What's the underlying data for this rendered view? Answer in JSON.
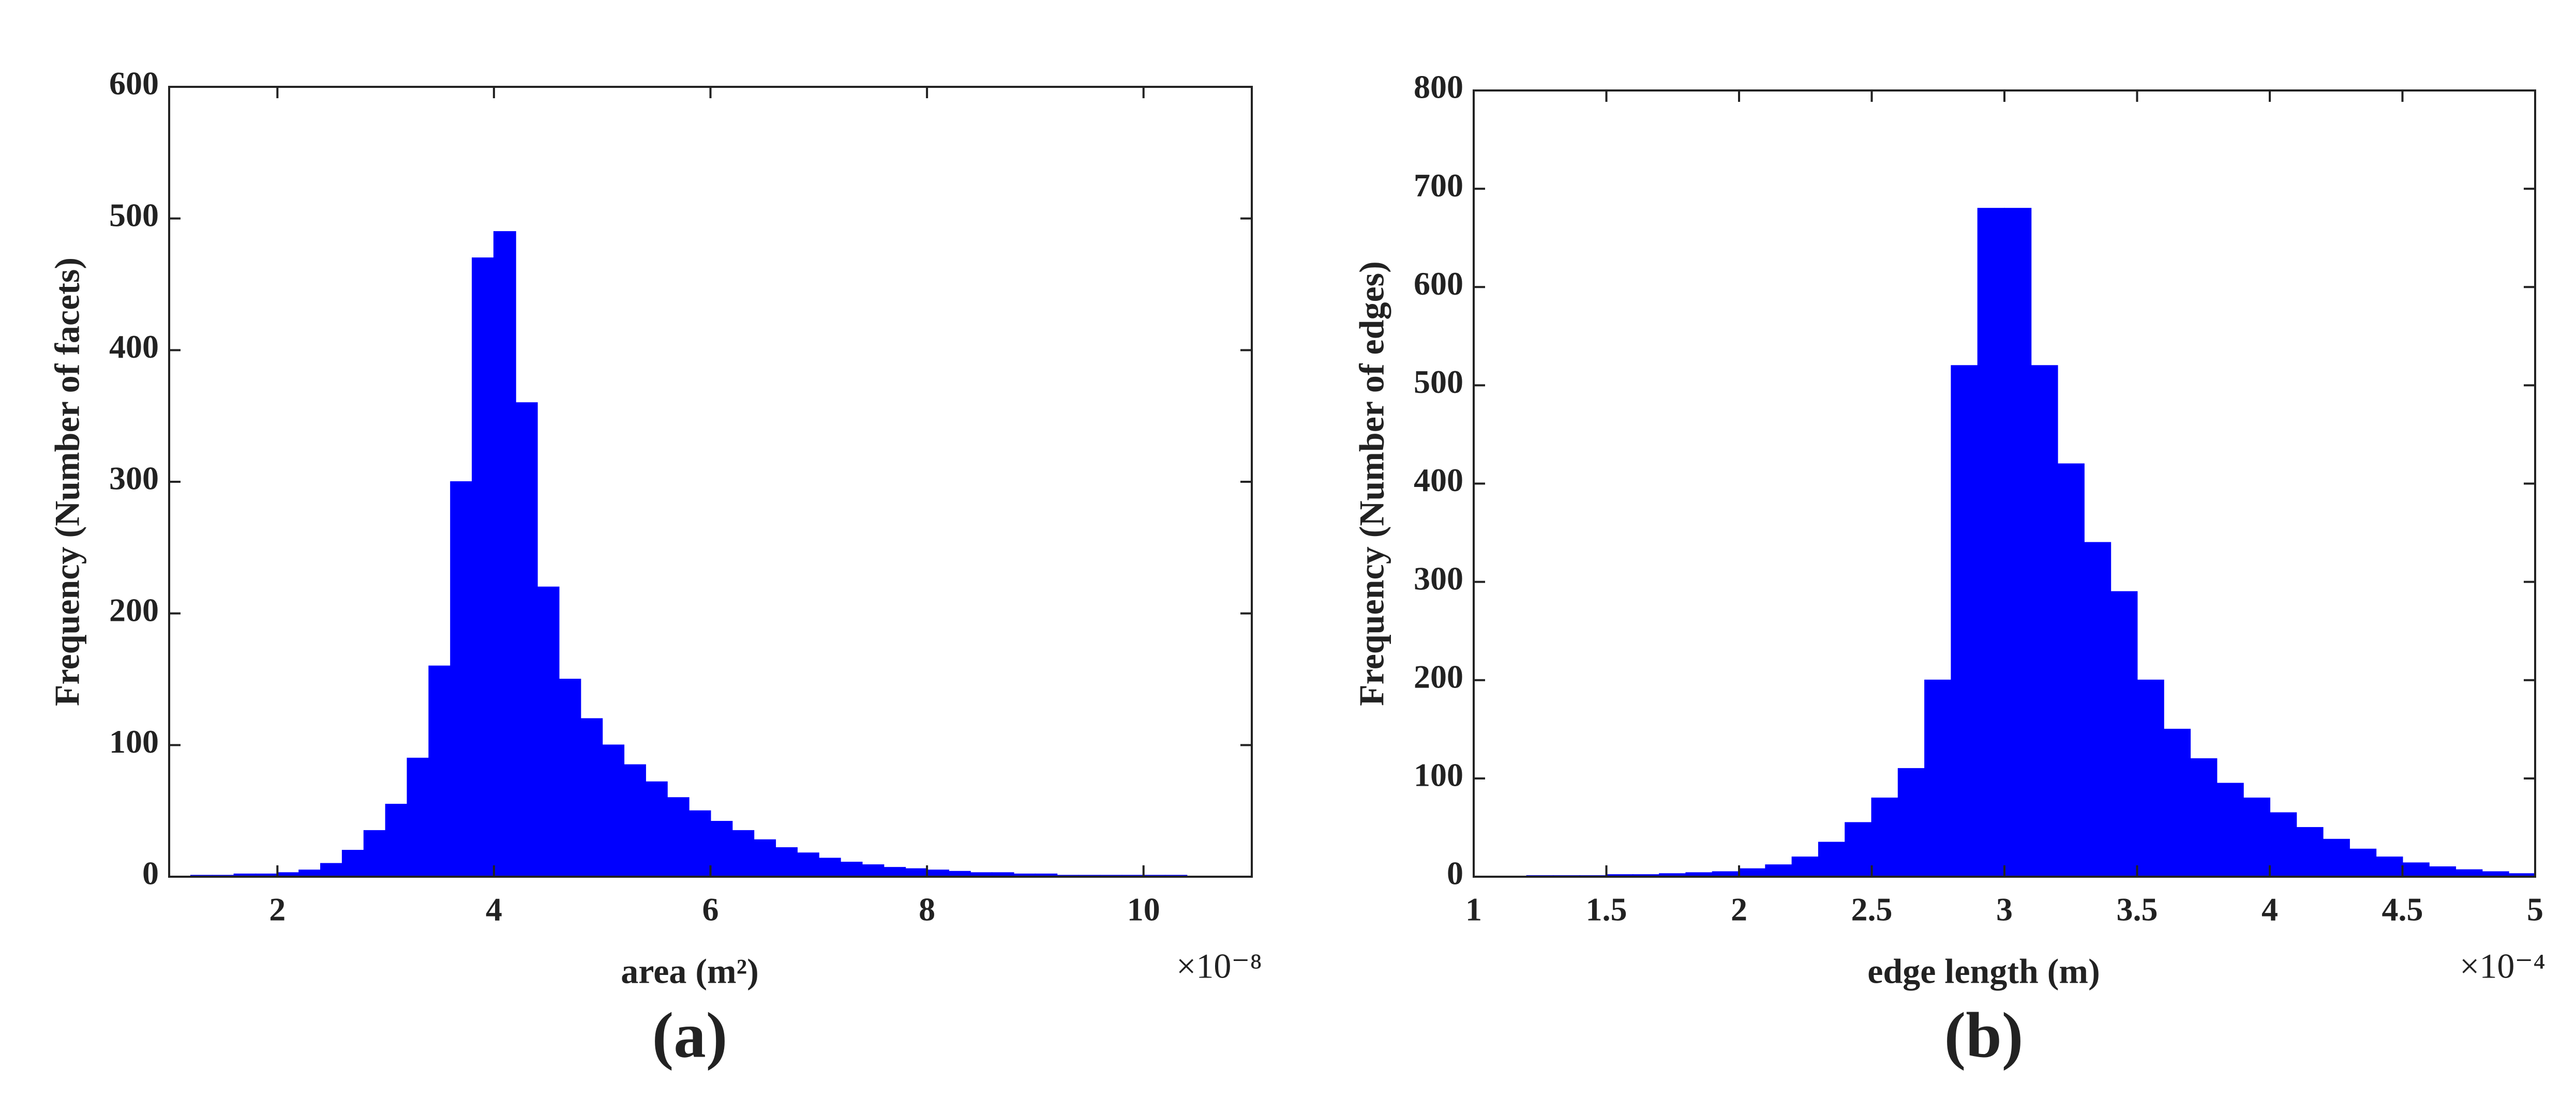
{
  "chart_data": [
    {
      "type": "histogram",
      "subtitle": "(a)",
      "xlabel": "area (m²)",
      "ylabel": "Frequency (Number of facets)",
      "x_multiplier": "×10⁻⁸",
      "color": "#0000ff",
      "xlim": [
        1,
        11
      ],
      "ylim": [
        0,
        600
      ],
      "xticks": [
        2,
        4,
        6,
        8,
        10
      ],
      "yticks": [
        0,
        100,
        200,
        300,
        400,
        500,
        600
      ],
      "bins": [
        1.2,
        1.4,
        1.6,
        1.8,
        2.0,
        2.2,
        2.4,
        2.6,
        2.8,
        3.0,
        3.2,
        3.4,
        3.6,
        3.8,
        4.0,
        4.2,
        4.4,
        4.6,
        4.8,
        5.0,
        5.2,
        5.4,
        5.6,
        5.8,
        6.0,
        6.2,
        6.4,
        6.6,
        6.8,
        7.0,
        7.2,
        7.4,
        7.6,
        7.8,
        8.0,
        8.2,
        8.4,
        8.6,
        8.8,
        9.0,
        9.2,
        9.4,
        9.6,
        9.8,
        10.0,
        10.2,
        10.4
      ],
      "values": [
        1,
        1,
        2,
        2,
        3,
        5,
        10,
        20,
        35,
        55,
        90,
        160,
        300,
        470,
        490,
        360,
        220,
        150,
        120,
        100,
        85,
        72,
        60,
        50,
        42,
        35,
        28,
        22,
        18,
        14,
        11,
        9,
        7,
        6,
        5,
        4,
        3,
        3,
        2,
        2,
        1,
        1,
        1,
        1,
        1,
        1
      ]
    },
    {
      "type": "histogram",
      "subtitle": "(b)",
      "xlabel": "edge length (m)",
      "ylabel": "Frequency (Number of edges)",
      "x_multiplier": "×10⁻⁴",
      "color": "#0000ff",
      "xlim": [
        1,
        5
      ],
      "ylim": [
        0,
        800
      ],
      "xticks": [
        1,
        1.5,
        2,
        2.5,
        3,
        3.5,
        4,
        4.5,
        5
      ],
      "yticks": [
        0,
        100,
        200,
        300,
        400,
        500,
        600,
        700,
        800
      ],
      "bins": [
        1.2,
        1.3,
        1.4,
        1.5,
        1.6,
        1.7,
        1.8,
        1.9,
        2.0,
        2.1,
        2.2,
        2.3,
        2.4,
        2.5,
        2.6,
        2.7,
        2.8,
        2.9,
        3.0,
        3.1,
        3.2,
        3.3,
        3.4,
        3.5,
        3.6,
        3.7,
        3.8,
        3.9,
        4.0,
        4.1,
        4.2,
        4.3,
        4.4,
        4.5,
        4.6,
        4.7,
        4.8,
        4.9,
        5.0
      ],
      "values": [
        1,
        1,
        1,
        2,
        2,
        3,
        4,
        5,
        8,
        12,
        20,
        35,
        55,
        80,
        110,
        200,
        520,
        680,
        680,
        520,
        420,
        340,
        290,
        200,
        150,
        120,
        95,
        80,
        65,
        50,
        38,
        28,
        20,
        14,
        10,
        7,
        5,
        3
      ]
    }
  ]
}
